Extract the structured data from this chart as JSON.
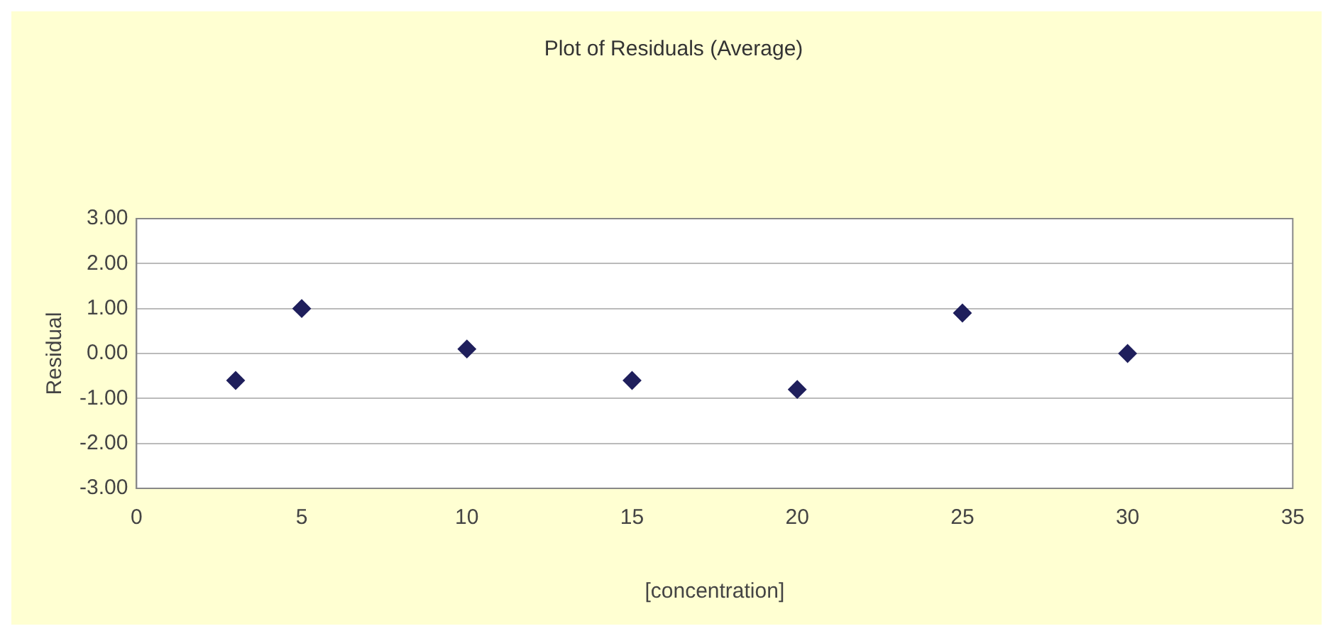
{
  "chart_data": {
    "type": "scatter",
    "title": "Plot of Residuals (Average)",
    "xlabel": "[concentration]",
    "ylabel": "Residual",
    "x": [
      3,
      5,
      10,
      15,
      20,
      25,
      30
    ],
    "series": [
      {
        "color": "#1f1f5c",
        "values": [
          -0.6,
          1.0,
          0.1,
          -0.6,
          -0.8,
          0.9,
          0.0
        ]
      }
    ],
    "xlim": [
      0,
      35
    ],
    "xticks": [
      0,
      5,
      10,
      15,
      20,
      25,
      30,
      35
    ],
    "ylim": [
      -3,
      3
    ],
    "yticks": [
      {
        "value": -3,
        "label": "-3.00"
      },
      {
        "value": -2,
        "label": "-2.00"
      },
      {
        "value": -1,
        "label": "-1.00"
      },
      {
        "value": 0,
        "label": "0.00"
      },
      {
        "value": 1,
        "label": "1.00"
      },
      {
        "value": 2,
        "label": "2.00"
      },
      {
        "value": 3,
        "label": "3.00"
      }
    ],
    "grid": "y",
    "marker": "diamond",
    "legend": false
  }
}
